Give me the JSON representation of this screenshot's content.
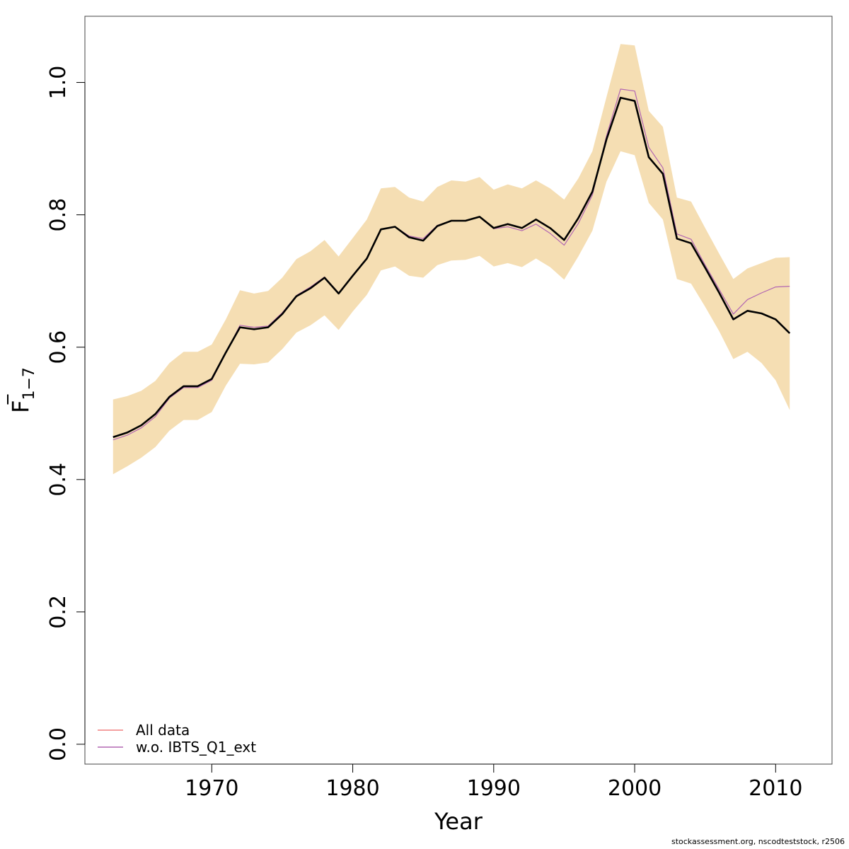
{
  "chart_data": {
    "type": "line",
    "title": "",
    "xlabel": "Year",
    "ylabel_main": "F",
    "ylabel_sub": "1−7",
    "xlim": [
      1961,
      2014
    ],
    "ylim": [
      -0.03,
      1.1
    ],
    "xticks": [
      1970,
      1980,
      1990,
      2000,
      2010
    ],
    "yticks": [
      0.0,
      0.2,
      0.4,
      0.6,
      0.8,
      1.0
    ],
    "ytick_labels": [
      "0.0",
      "0.2",
      "0.4",
      "0.6",
      "0.8",
      "1.0"
    ],
    "x": [
      1963,
      1964,
      1965,
      1966,
      1967,
      1968,
      1969,
      1970,
      1971,
      1972,
      1973,
      1974,
      1975,
      1976,
      1977,
      1978,
      1979,
      1980,
      1981,
      1982,
      1983,
      1984,
      1985,
      1986,
      1987,
      1988,
      1989,
      1990,
      1991,
      1992,
      1993,
      1994,
      1995,
      1996,
      1997,
      1998,
      1999,
      2000,
      2001,
      2002,
      2003,
      2004,
      2005,
      2006,
      2007,
      2008,
      2009,
      2010,
      2011
    ],
    "band": {
      "color": "#F5DEB3",
      "upper": [
        0.521,
        0.526,
        0.534,
        0.549,
        0.576,
        0.593,
        0.593,
        0.604,
        0.642,
        0.686,
        0.681,
        0.685,
        0.705,
        0.733,
        0.745,
        0.762,
        0.737,
        0.765,
        0.793,
        0.84,
        0.842,
        0.826,
        0.82,
        0.842,
        0.852,
        0.85,
        0.857,
        0.838,
        0.846,
        0.84,
        0.852,
        0.84,
        0.823,
        0.855,
        0.896,
        0.978,
        1.058,
        1.056,
        0.957,
        0.933,
        0.826,
        0.82,
        0.78,
        0.741,
        0.703,
        0.719,
        0.727,
        0.735,
        0.736
      ],
      "lower": [
        0.408,
        0.42,
        0.433,
        0.449,
        0.474,
        0.49,
        0.49,
        0.502,
        0.542,
        0.575,
        0.574,
        0.577,
        0.597,
        0.622,
        0.633,
        0.648,
        0.626,
        0.654,
        0.679,
        0.716,
        0.722,
        0.708,
        0.705,
        0.724,
        0.731,
        0.732,
        0.738,
        0.722,
        0.727,
        0.721,
        0.734,
        0.721,
        0.702,
        0.737,
        0.776,
        0.85,
        0.896,
        0.89,
        0.818,
        0.793,
        0.703,
        0.696,
        0.661,
        0.624,
        0.582,
        0.593,
        0.576,
        0.55,
        0.505
      ]
    },
    "series": [
      {
        "name": "All data",
        "legend": true,
        "color": "#F08080",
        "width": 1.2,
        "values": [
          0.464,
          0.471,
          0.482,
          0.499,
          0.525,
          0.541,
          0.541,
          0.552,
          0.592,
          0.63,
          0.627,
          0.63,
          0.65,
          0.677,
          0.689,
          0.705,
          0.681,
          0.708,
          0.734,
          0.778,
          0.782,
          0.766,
          0.761,
          0.783,
          0.791,
          0.791,
          0.797,
          0.78,
          0.786,
          0.78,
          0.793,
          0.78,
          0.762,
          0.795,
          0.835,
          0.914,
          0.977,
          0.972,
          0.887,
          0.862,
          0.764,
          0.757,
          0.72,
          0.682,
          0.642,
          0.655,
          0.651,
          0.642,
          0.621
        ]
      },
      {
        "name": "w.o. IBTS_Q1_ext",
        "legend": true,
        "color": "#B266B2",
        "width": 1.2,
        "values": [
          0.46,
          0.467,
          0.478,
          0.495,
          0.523,
          0.539,
          0.539,
          0.55,
          0.591,
          0.633,
          0.63,
          0.632,
          0.652,
          0.678,
          0.691,
          0.706,
          0.682,
          0.708,
          0.735,
          0.778,
          0.782,
          0.768,
          0.764,
          0.784,
          0.791,
          0.791,
          0.797,
          0.779,
          0.782,
          0.776,
          0.786,
          0.772,
          0.754,
          0.787,
          0.83,
          0.919,
          0.99,
          0.987,
          0.902,
          0.871,
          0.771,
          0.763,
          0.724,
          0.687,
          0.65,
          0.672,
          0.682,
          0.691,
          0.692
        ]
      },
      {
        "name": "",
        "legend": false,
        "color": "#000000",
        "width": 2.6,
        "values": [
          0.464,
          0.471,
          0.482,
          0.499,
          0.525,
          0.541,
          0.541,
          0.552,
          0.592,
          0.63,
          0.627,
          0.63,
          0.65,
          0.677,
          0.689,
          0.705,
          0.681,
          0.708,
          0.734,
          0.778,
          0.782,
          0.766,
          0.761,
          0.783,
          0.791,
          0.791,
          0.797,
          0.78,
          0.786,
          0.78,
          0.793,
          0.78,
          0.762,
          0.795,
          0.835,
          0.914,
          0.977,
          0.972,
          0.887,
          0.862,
          0.764,
          0.757,
          0.72,
          0.682,
          0.642,
          0.655,
          0.651,
          0.642,
          0.621
        ]
      }
    ],
    "legend_position": "bottom-left",
    "grid": false
  },
  "footer": "stockassessment.org, nscodteststock, r2506"
}
